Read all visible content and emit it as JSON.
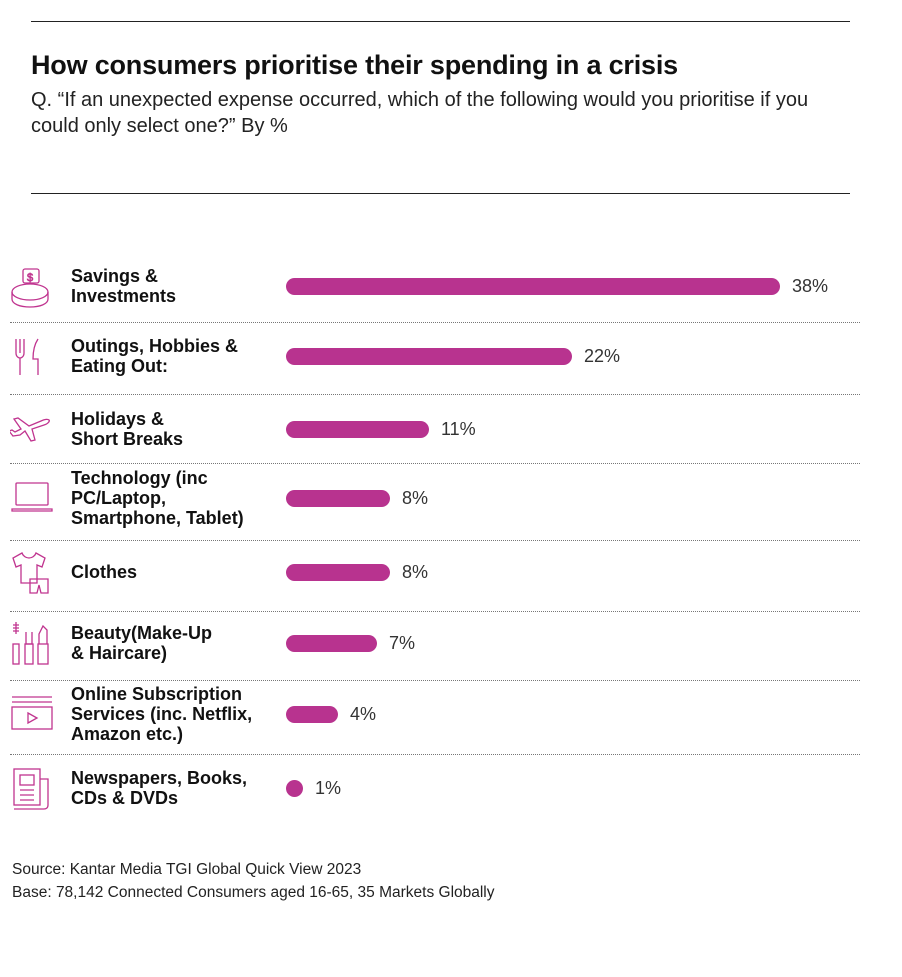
{
  "title": "How consumers prioritise their spending in a crisis",
  "subtitle": "Q. “If an unexpected expense occurred, which of the following would you prioritise if you could only select one?” By %",
  "source_lines": [
    "Source: Kantar Media TGI Global Quick View 2023",
    "Base: 78,142 Connected Consumers aged 16-65, 35 Markets Globally"
  ],
  "colors": {
    "bar": "#b8338f",
    "icon": "#c0348f"
  },
  "chart_data": {
    "type": "bar",
    "orientation": "horizontal",
    "title": "How consumers prioritise their spending in a crisis",
    "xlim": [
      0,
      38
    ],
    "categories": [
      "Savings & Investments",
      "Outings, Hobbies & Eating Out:",
      "Holidays & Short Breaks",
      "Technology (inc PC/Laptop, Smartphone, Tablet)",
      "Clothes",
      "Beauty(Make-Up & Haircare)",
      "Online Subscription Services (inc. Netflix, Amazon etc.)",
      "Newspapers, Books, CDs & DVDs"
    ],
    "values": [
      38,
      22,
      11,
      8,
      8,
      7,
      4,
      1
    ],
    "value_labels": [
      "38%",
      "22%",
      "11%",
      "8%",
      "8%",
      "7%",
      "4%",
      "1%"
    ]
  },
  "rows": [
    {
      "label_lines": [
        "Savings &",
        "Investments"
      ],
      "icon": "savings-coins-icon"
    },
    {
      "label_lines": [
        "Outings, Hobbies &",
        "Eating Out:"
      ],
      "icon": "fork-knife-icon"
    },
    {
      "label_lines": [
        "Holidays &",
        "Short Breaks"
      ],
      "icon": "airplane-icon"
    },
    {
      "label_lines": [
        "Technology (inc",
        "PC/Laptop,",
        "Smartphone, Tablet)"
      ],
      "icon": "laptop-icon"
    },
    {
      "label_lines": [
        "Clothes"
      ],
      "icon": "clothes-icon"
    },
    {
      "label_lines": [
        "Beauty(Make-Up",
        "& Haircare)"
      ],
      "icon": "makeup-icon"
    },
    {
      "label_lines": [
        "Online Subscription",
        "Services (inc. Netflix,",
        "Amazon etc.)"
      ],
      "icon": "video-play-icon"
    },
    {
      "label_lines": [
        "Newspapers, Books,",
        "CDs & DVDs"
      ],
      "icon": "newspaper-icon"
    }
  ]
}
